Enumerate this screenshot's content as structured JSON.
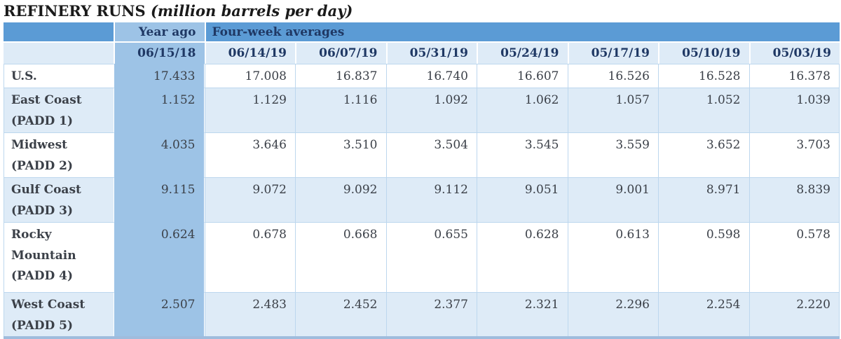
{
  "title": {
    "main": "REFINERY RUNS ",
    "unit": "(million barrels per day)"
  },
  "colors": {
    "header_blue": "#5B9BD5",
    "year_ago_blue": "#9DC3E6",
    "light_row": "#DEEBF7",
    "white_row": "#FFFFFF",
    "grid_line": "#BDD7EE",
    "navy_text": "#1F3864",
    "body_text": "#3B4048",
    "title_text": "#1A1A1A",
    "bottom_border": "#9FBCDD"
  },
  "table": {
    "group_headers": {
      "year_ago": "Year ago",
      "four_week": "Four-week averages"
    },
    "date_headers": [
      "06/15/18",
      "06/14/19",
      "06/07/19",
      "05/31/19",
      "05/24/19",
      "05/17/19",
      "05/10/19",
      "05/03/19"
    ],
    "rows": [
      {
        "label": "U.S.",
        "values": [
          "17.433",
          "17.008",
          "16.837",
          "16.740",
          "16.607",
          "16.526",
          "16.528",
          "16.378"
        ]
      },
      {
        "label": "East Coast (PADD 1)",
        "values": [
          "1.152",
          "1.129",
          "1.116",
          "1.092",
          "1.062",
          "1.057",
          "1.052",
          "1.039"
        ]
      },
      {
        "label": "Midwest (PADD 2)",
        "values": [
          "4.035",
          "3.646",
          "3.510",
          "3.504",
          "3.545",
          "3.559",
          "3.652",
          "3.703"
        ]
      },
      {
        "label": "Gulf Coast (PADD 3)",
        "values": [
          "9.115",
          "9.072",
          "9.092",
          "9.112",
          "9.051",
          "9.001",
          "8.971",
          "8.839"
        ]
      },
      {
        "label": "Rocky Mountain (PADD 4)",
        "values": [
          "0.624",
          "0.678",
          "0.668",
          "0.655",
          "0.628",
          "0.613",
          "0.598",
          "0.578"
        ]
      },
      {
        "label": "West Coast (PADD 5)",
        "values": [
          "2.507",
          "2.483",
          "2.452",
          "2.377",
          "2.321",
          "2.296",
          "2.254",
          "2.220"
        ]
      }
    ]
  },
  "chart_data": {
    "type": "table",
    "title": "REFINERY RUNS (million barrels per day)",
    "column_groups": [
      {
        "label": "Year ago",
        "columns": [
          "06/15/18"
        ]
      },
      {
        "label": "Four-week averages",
        "columns": [
          "06/14/19",
          "06/07/19",
          "05/31/19",
          "05/24/19",
          "05/17/19",
          "05/10/19",
          "05/03/19"
        ]
      }
    ],
    "columns": [
      "06/15/18",
      "06/14/19",
      "06/07/19",
      "05/31/19",
      "05/24/19",
      "05/17/19",
      "05/10/19",
      "05/03/19"
    ],
    "row_labels": [
      "U.S.",
      "East Coast (PADD 1)",
      "Midwest (PADD 2)",
      "Gulf Coast (PADD 3)",
      "Rocky Mountain (PADD 4)",
      "West Coast (PADD 5)"
    ],
    "rows": [
      [
        17.433,
        17.008,
        16.837,
        16.74,
        16.607,
        16.526,
        16.528,
        16.378
      ],
      [
        1.152,
        1.129,
        1.116,
        1.092,
        1.062,
        1.057,
        1.052,
        1.039
      ],
      [
        4.035,
        3.646,
        3.51,
        3.504,
        3.545,
        3.559,
        3.652,
        3.703
      ],
      [
        9.115,
        9.072,
        9.092,
        9.112,
        9.051,
        9.001,
        8.971,
        8.839
      ],
      [
        0.624,
        0.678,
        0.668,
        0.655,
        0.628,
        0.613,
        0.598,
        0.578
      ],
      [
        2.507,
        2.483,
        2.452,
        2.377,
        2.321,
        2.296,
        2.254,
        2.22
      ]
    ],
    "units": "million barrels per day"
  }
}
